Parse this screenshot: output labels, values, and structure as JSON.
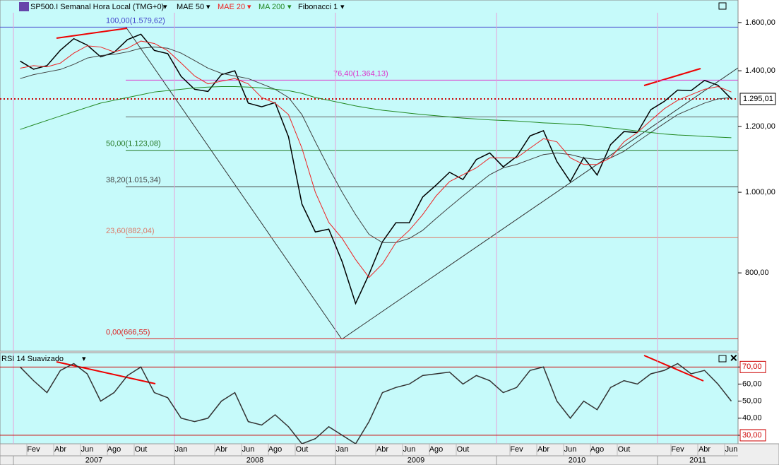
{
  "chart_data": [
    {
      "type": "line",
      "title": "SP500.I Semanal Hora Local (TMG+0)",
      "log_scale": true,
      "x": [
        "2007-01",
        "2007-02",
        "2007-03",
        "2007-04",
        "2007-05",
        "2007-06",
        "2007-07",
        "2007-08",
        "2007-09",
        "2007-10",
        "2007-11",
        "2007-12",
        "2008-01",
        "2008-02",
        "2008-03",
        "2008-04",
        "2008-05",
        "2008-06",
        "2008-07",
        "2008-08",
        "2008-09",
        "2008-10",
        "2008-11",
        "2008-12",
        "2009-01",
        "2009-02",
        "2009-03",
        "2009-04",
        "2009-05",
        "2009-06",
        "2009-07",
        "2009-08",
        "2009-09",
        "2009-10",
        "2009-11",
        "2009-12",
        "2010-01",
        "2010-02",
        "2010-03",
        "2010-04",
        "2010-05",
        "2010-06",
        "2010-07",
        "2010-08",
        "2010-09",
        "2010-10",
        "2010-11",
        "2010-12",
        "2011-01",
        "2011-02",
        "2011-03",
        "2011-04",
        "2011-05",
        "2011-06"
      ],
      "xlim": [
        "2006-12",
        "2011-07"
      ],
      "xticks": [
        {
          "value": "2007-02",
          "label": "Fev"
        },
        {
          "value": "2007-04",
          "label": "Abr"
        },
        {
          "value": "2007-06",
          "label": "Jun"
        },
        {
          "value": "2007-08",
          "label": "Ago"
        },
        {
          "value": "2007-10",
          "label": "Out"
        },
        {
          "value": "2008-01",
          "label": "Jan"
        },
        {
          "value": "2008-04",
          "label": "Abr"
        },
        {
          "value": "2008-06",
          "label": "Jun"
        },
        {
          "value": "2008-08",
          "label": "Ago"
        },
        {
          "value": "2008-10",
          "label": "Out"
        },
        {
          "value": "2009-01",
          "label": "Jan"
        },
        {
          "value": "2009-04",
          "label": "Abr"
        },
        {
          "value": "2009-06",
          "label": "Jun"
        },
        {
          "value": "2009-08",
          "label": "Ago"
        },
        {
          "value": "2009-10",
          "label": "Out"
        },
        {
          "value": "2010-02",
          "label": "Fev"
        },
        {
          "value": "2010-04",
          "label": "Abr"
        },
        {
          "value": "2010-06",
          "label": "Jun"
        },
        {
          "value": "2010-08",
          "label": "Ago"
        },
        {
          "value": "2010-10",
          "label": "Out"
        },
        {
          "value": "2011-02",
          "label": "Fev"
        },
        {
          "value": "2011-04",
          "label": "Abr"
        },
        {
          "value": "2011-06",
          "label": "Jun"
        }
      ],
      "years": [
        2007,
        2008,
        2009,
        2010,
        2011
      ],
      "ylim": [
        644,
        1644
      ],
      "yticks": [
        {
          "value": 800,
          "label": "800,00"
        },
        {
          "value": 1000,
          "label": "1.000,00"
        },
        {
          "value": 1200,
          "label": "1.200,00"
        },
        {
          "value": 1400,
          "label": "1.400,00"
        },
        {
          "value": 1600,
          "label": "1.600,00"
        }
      ],
      "last": {
        "value": 1295.01,
        "label": "1.295,01",
        "color": "#cc0000"
      },
      "series": [
        {
          "color": "#000000",
          "values": [
            1438,
            1406,
            1420,
            1482,
            1530,
            1503,
            1455,
            1473,
            1526,
            1549,
            1481,
            1468,
            1378,
            1330,
            1322,
            1385,
            1400,
            1280,
            1267,
            1282,
            1166,
            968,
            896,
            903,
            825,
            735,
            797,
            872,
            919,
            919,
            987,
            1020,
            1057,
            1036,
            1095,
            1115,
            1073,
            1104,
            1169,
            1186,
            1089,
            1030,
            1101,
            1049,
            1141,
            1183,
            1180,
            1257,
            1286,
            1327,
            1325,
            1363,
            1345,
            1295
          ]
        },
        {
          "name": "MAE 50",
          "color": "#404040",
          "values": [
            1370,
            1385,
            1395,
            1405,
            1425,
            1450,
            1460,
            1465,
            1475,
            1490,
            1495,
            1490,
            1470,
            1440,
            1410,
            1390,
            1380,
            1370,
            1350,
            1330,
            1300,
            1240,
            1150,
            1070,
            1000,
            940,
            890,
            870,
            870,
            880,
            900,
            930,
            960,
            990,
            1020,
            1050,
            1070,
            1080,
            1095,
            1110,
            1115,
            1110,
            1100,
            1095,
            1100,
            1120,
            1150,
            1180,
            1210,
            1240,
            1260,
            1280,
            1295,
            1300
          ]
        },
        {
          "name": "MAE 20",
          "color": "#ee2222",
          "values": [
            1410,
            1420,
            1415,
            1430,
            1470,
            1500,
            1495,
            1475,
            1490,
            1520,
            1510,
            1480,
            1430,
            1380,
            1350,
            1360,
            1370,
            1350,
            1300,
            1280,
            1240,
            1130,
            1000,
            920,
            880,
            830,
            790,
            820,
            870,
            900,
            940,
            990,
            1030,
            1050,
            1070,
            1100,
            1100,
            1100,
            1130,
            1160,
            1150,
            1100,
            1080,
            1080,
            1100,
            1150,
            1180,
            1220,
            1260,
            1290,
            1310,
            1330,
            1340,
            1320
          ]
        },
        {
          "name": "MA 200",
          "color": "#228822",
          "values": [
            1190,
            1205,
            1220,
            1235,
            1250,
            1265,
            1280,
            1290,
            1300,
            1310,
            1320,
            1325,
            1330,
            1335,
            1338,
            1340,
            1340,
            1338,
            1335,
            1330,
            1325,
            1315,
            1300,
            1290,
            1280,
            1270,
            1262,
            1255,
            1250,
            1245,
            1240,
            1236,
            1232,
            1228,
            1225,
            1222,
            1220,
            1218,
            1215,
            1212,
            1210,
            1207,
            1205,
            1200,
            1195,
            1190,
            1185,
            1180,
            1175,
            1172,
            1170,
            1167,
            1165,
            1163
          ]
        }
      ],
      "fibonacci": {
        "name": "Fibonacci 1",
        "levels": [
          {
            "value": 1579.62,
            "label": "100,00(1.579,62)",
            "color": "#4444cc"
          },
          {
            "value": 1364.13,
            "label": "76,40(1.364,13)",
            "color": "#dd33cc"
          },
          {
            "value": 1232.32,
            "color": "#666666"
          },
          {
            "value": 1123.08,
            "label": "50,00(1.123,08)",
            "color": "#227722"
          },
          {
            "value": 1015.34,
            "label": "38,20(1.015,34)",
            "color": "#444444"
          },
          {
            "value": 882.04,
            "label": "23,60(882,04)",
            "color": "#dd7766"
          },
          {
            "value": 666.55,
            "label": "0,00(666,55)",
            "color": "#dd2222"
          }
        ]
      }
    },
    {
      "type": "line",
      "title": "RSI 14 Suavizado",
      "ylim": [
        25,
        78
      ],
      "yticks": [
        {
          "value": 30,
          "label": "30,00"
        },
        {
          "value": 40,
          "label": "40,00"
        },
        {
          "value": 50,
          "label": "50,00"
        },
        {
          "value": 60,
          "label": "60,00"
        },
        {
          "value": 70,
          "label": "70,00"
        }
      ],
      "bands": [
        70,
        30
      ],
      "band_color": "#cc0000",
      "series": [
        {
          "color": "#333333",
          "values": [
            70,
            62,
            55,
            68,
            72,
            66,
            50,
            55,
            65,
            70,
            55,
            52,
            40,
            38,
            40,
            50,
            55,
            38,
            36,
            42,
            35,
            25,
            28,
            35,
            30,
            25,
            38,
            55,
            58,
            60,
            65,
            66,
            67,
            60,
            65,
            62,
            55,
            58,
            68,
            70,
            50,
            40,
            50,
            45,
            58,
            62,
            60,
            66,
            68,
            72,
            66,
            68,
            60,
            50
          ]
        }
      ]
    }
  ]
}
